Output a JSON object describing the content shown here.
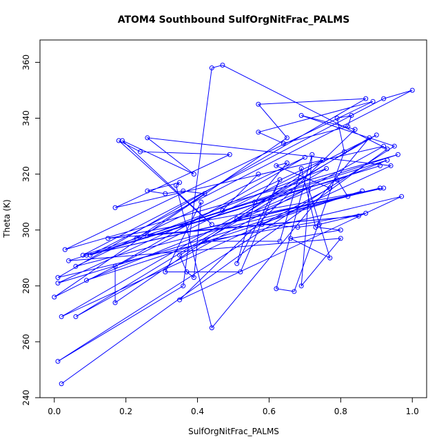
{
  "chart_data": {
    "type": "line",
    "title": "ATOM4 Southbound SulfOrgNitFrac_PALMS",
    "x_label": "SulfOrgNitFrac_PALMS",
    "y_label": "Theta (K)",
    "color": "#0000ff",
    "markers": true,
    "xlim": [
      -0.04,
      1.04
    ],
    "ylim": [
      240,
      368
    ],
    "xticks": [
      {
        "value": 0,
        "label": "0.0"
      },
      0.2,
      0.4,
      0.6,
      0.8,
      {
        "value": 1,
        "label": "1.0"
      }
    ],
    "yticks": [
      240,
      260,
      280,
      300,
      320,
      340,
      360
    ],
    "x": [
      0.02,
      0.93,
      0.47,
      0.44,
      0.36,
      0.01,
      0.95,
      0.69,
      0.84,
      0.35,
      0.97,
      0.01,
      0.87,
      0.57,
      0.65,
      0.0,
      0.9,
      0.02,
      0.94,
      0.26,
      0.39,
      0.19,
      0.44,
      0.18,
      0.24,
      0.49,
      0.17,
      0.92,
      0.06,
      0.88,
      0.44,
      0.34,
      0.35,
      0.26,
      0.31,
      0.36,
      0.42,
      0.23,
      0.96,
      0.03,
      0.89,
      0.57,
      0.64,
      0.82,
      0.83,
      0.79,
      0.81,
      0.67,
      0.62,
      0.72,
      0.69,
      0.8,
      0.04,
      0.91,
      0.1,
      1.0,
      0.92,
      0.08,
      0.93,
      0.09,
      0.86,
      0.01,
      0.75,
      0.17,
      0.17,
      0.7,
      0.06,
      0.91,
      0.09,
      0.92,
      0.15,
      0.85,
      0.26,
      0.76,
      0.35,
      0.37,
      0.39,
      0.41,
      0.31,
      0.52,
      0.63,
      0.51,
      0.56,
      0.65,
      0.62,
      0.77,
      0.58,
      0.68,
      0.74,
      0.87,
      0.42,
      0.63,
      0.69,
      0.73,
      0.8,
      0.66,
      0.77,
      0.71,
      0.51,
      0.82,
      0.79,
      0.47,
      0.57
    ],
    "values": [
      245,
      329,
      359,
      358,
      280,
      253,
      330,
      341,
      336,
      275,
      312,
      283,
      347,
      345,
      333,
      276,
      334,
      269,
      323,
      333,
      320,
      332,
      302,
      332,
      328,
      327,
      308,
      330,
      269,
      333,
      265,
      316,
      317,
      314,
      313,
      314,
      313,
      297,
      327,
      293,
      346,
      335,
      331,
      337,
      341,
      340,
      328,
      278,
      279,
      327,
      280,
      297,
      289,
      323,
      291,
      350,
      347,
      291,
      325,
      282,
      314,
      281,
      325,
      274,
      287,
      326,
      287,
      315,
      291,
      315,
      297,
      305,
      298,
      322,
      291,
      285,
      283,
      310,
      285,
      285,
      318,
      288,
      310,
      324,
      323,
      315,
      302,
      301,
      302,
      306,
      296,
      296,
      322,
      301,
      300,
      297,
      290,
      315,
      304,
      312,
      318,
      307,
      320
    ]
  }
}
